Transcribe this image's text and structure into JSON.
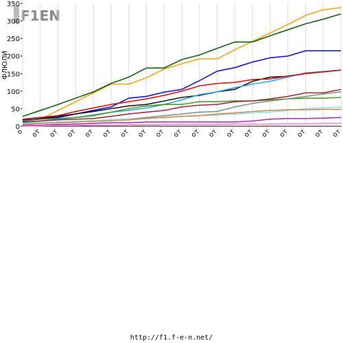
{
  "logo": "F1EN",
  "footer": "http://f1.f-e-n.net/",
  "chart_data": {
    "type": "line",
    "ylabel": "ФЛЮЛИ",
    "categories": [
      "о",
      "от",
      "от",
      "от",
      "от",
      "от",
      "от",
      "от",
      "от",
      "от",
      "от",
      "от",
      "от",
      "от",
      "от",
      "от",
      "от",
      "от",
      "от"
    ],
    "ylim": [
      0,
      350
    ],
    "yticks": [
      0,
      50,
      100,
      150,
      200,
      250,
      300,
      350
    ],
    "grid": true,
    "series": [
      {
        "color": "#f0a000",
        "values": [
          15,
          20,
          45,
          70,
          95,
          120,
          120,
          138,
          163,
          178,
          192,
          192,
          218,
          242,
          266,
          290,
          316,
          332,
          338
        ]
      },
      {
        "color": "#005000",
        "values": [
          28,
          45,
          62,
          80,
          98,
          122,
          140,
          166,
          166,
          190,
          203,
          222,
          240,
          240,
          258,
          275,
          292,
          305,
          320
        ]
      },
      {
        "color": "#0000c8",
        "values": [
          18,
          20,
          25,
          35,
          45,
          55,
          80,
          85,
          97,
          105,
          130,
          157,
          167,
          183,
          195,
          200,
          215,
          215,
          215
        ]
      },
      {
        "color": "#000000",
        "values": [
          15,
          22,
          28,
          35,
          42,
          50,
          58,
          62,
          72,
          82,
          88,
          98,
          105,
          128,
          140,
          142,
          150,
          155,
          160
        ]
      },
      {
        "color": "#20a0e0",
        "values": [
          10,
          15,
          20,
          25,
          32,
          40,
          45,
          52,
          62,
          75,
          90,
          98,
          110,
          120,
          128,
          140,
          152,
          156,
          160
        ]
      },
      {
        "color": "#d00000",
        "values": [
          20,
          25,
          30,
          42,
          52,
          62,
          70,
          78,
          88,
          100,
          115,
          122,
          125,
          133,
          135,
          143,
          150,
          155,
          160
        ]
      },
      {
        "color": "#409020",
        "values": [
          15,
          20,
          22,
          25,
          30,
          40,
          50,
          58,
          62,
          62,
          70,
          70,
          72,
          72,
          75,
          78,
          80,
          80,
          82
        ]
      },
      {
        "color": "#902030",
        "values": [
          12,
          15,
          18,
          20,
          22,
          28,
          35,
          40,
          45,
          55,
          60,
          62,
          70,
          72,
          78,
          85,
          95,
          95,
          105
        ]
      },
      {
        "color": "#709080",
        "values": [
          5,
          8,
          10,
          12,
          15,
          18,
          20,
          25,
          30,
          35,
          40,
          42,
          55,
          65,
          72,
          78,
          85,
          92,
          98
        ]
      },
      {
        "color": "#80e0f0",
        "values": [
          8,
          10,
          12,
          14,
          16,
          18,
          20,
          22,
          25,
          28,
          30,
          32,
          35,
          38,
          40,
          45,
          50,
          52,
          55
        ]
      },
      {
        "color": "#d08040",
        "values": [
          5,
          8,
          10,
          12,
          14,
          16,
          18,
          22,
          25,
          28,
          30,
          35,
          38,
          42,
          45,
          47,
          47,
          48,
          48
        ]
      },
      {
        "color": "#a020b0",
        "values": [
          2,
          3,
          5,
          6,
          8,
          10,
          10,
          12,
          12,
          12,
          12,
          12,
          12,
          15,
          20,
          22,
          22,
          23,
          25
        ]
      },
      {
        "color": "#f080c0",
        "values": [
          0,
          1,
          2,
          2,
          3,
          3,
          4,
          4,
          5,
          5,
          5,
          5,
          6,
          6,
          6,
          7,
          7,
          8,
          8
        ]
      }
    ]
  }
}
